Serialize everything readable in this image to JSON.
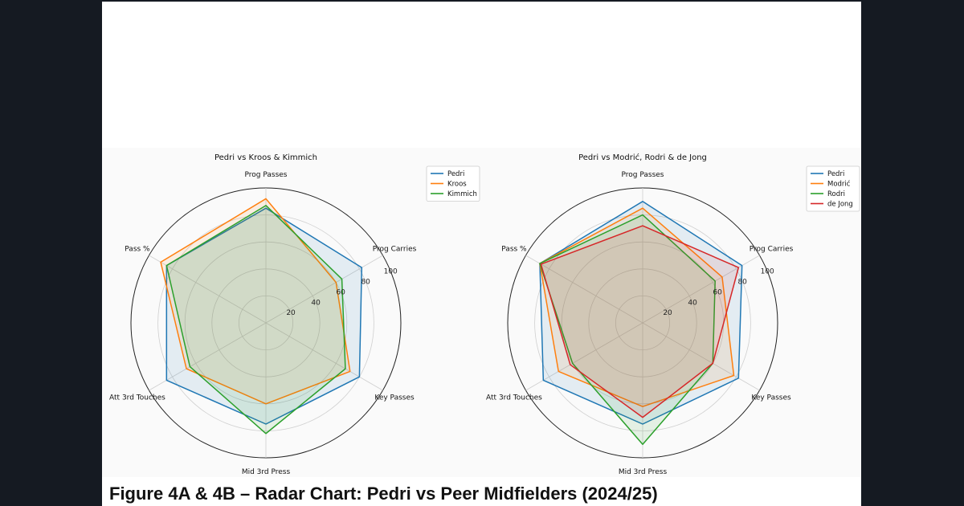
{
  "caption": "Figure 4A & 4B – Radar Chart: Pedri vs Peer Midfielders (2024/25)",
  "chart_data": [
    {
      "type": "radar",
      "title": "Pedri vs Kroos & Kimmich",
      "axes": [
        "Prog Passes",
        "Prog Carries",
        "Key Passes",
        "Mid 3rd Press",
        "Att 3rd Touches",
        "Pass %"
      ],
      "r_ticks": [
        20,
        40,
        60,
        80,
        100
      ],
      "rlim": [
        0,
        100
      ],
      "grid": true,
      "legend_position": "top-right",
      "series": [
        {
          "name": "Pedri",
          "color": "#1f77b4",
          "values": [
            85,
            82,
            80,
            75,
            85,
            85
          ]
        },
        {
          "name": "Kroos",
          "color": "#ff7f0e",
          "values": [
            92,
            60,
            72,
            60,
            68,
            90
          ]
        },
        {
          "name": "Kimmich",
          "color": "#2ca02c",
          "values": [
            87,
            65,
            68,
            82,
            65,
            85
          ]
        }
      ]
    },
    {
      "type": "radar",
      "title": "Pedri vs Modrić, Rodri & de Jong",
      "axes": [
        "Prog Passes",
        "Prog Carries",
        "Key Passes",
        "Mid 3rd Press",
        "Att 3rd Touches",
        "Pass %"
      ],
      "r_ticks": [
        20,
        40,
        60,
        80,
        100
      ],
      "rlim": [
        0,
        100
      ],
      "grid": true,
      "legend_position": "top-right",
      "series": [
        {
          "name": "Pedri",
          "color": "#1f77b4",
          "values": [
            90,
            85,
            82,
            75,
            85,
            88
          ]
        },
        {
          "name": "Modrić",
          "color": "#ff7f0e",
          "values": [
            85,
            68,
            78,
            62,
            72,
            88
          ]
        },
        {
          "name": "Rodri",
          "color": "#2ca02c",
          "values": [
            80,
            62,
            60,
            90,
            60,
            88
          ]
        },
        {
          "name": "de Jong",
          "color": "#d62728",
          "values": [
            72,
            82,
            60,
            70,
            62,
            87
          ]
        }
      ]
    }
  ]
}
